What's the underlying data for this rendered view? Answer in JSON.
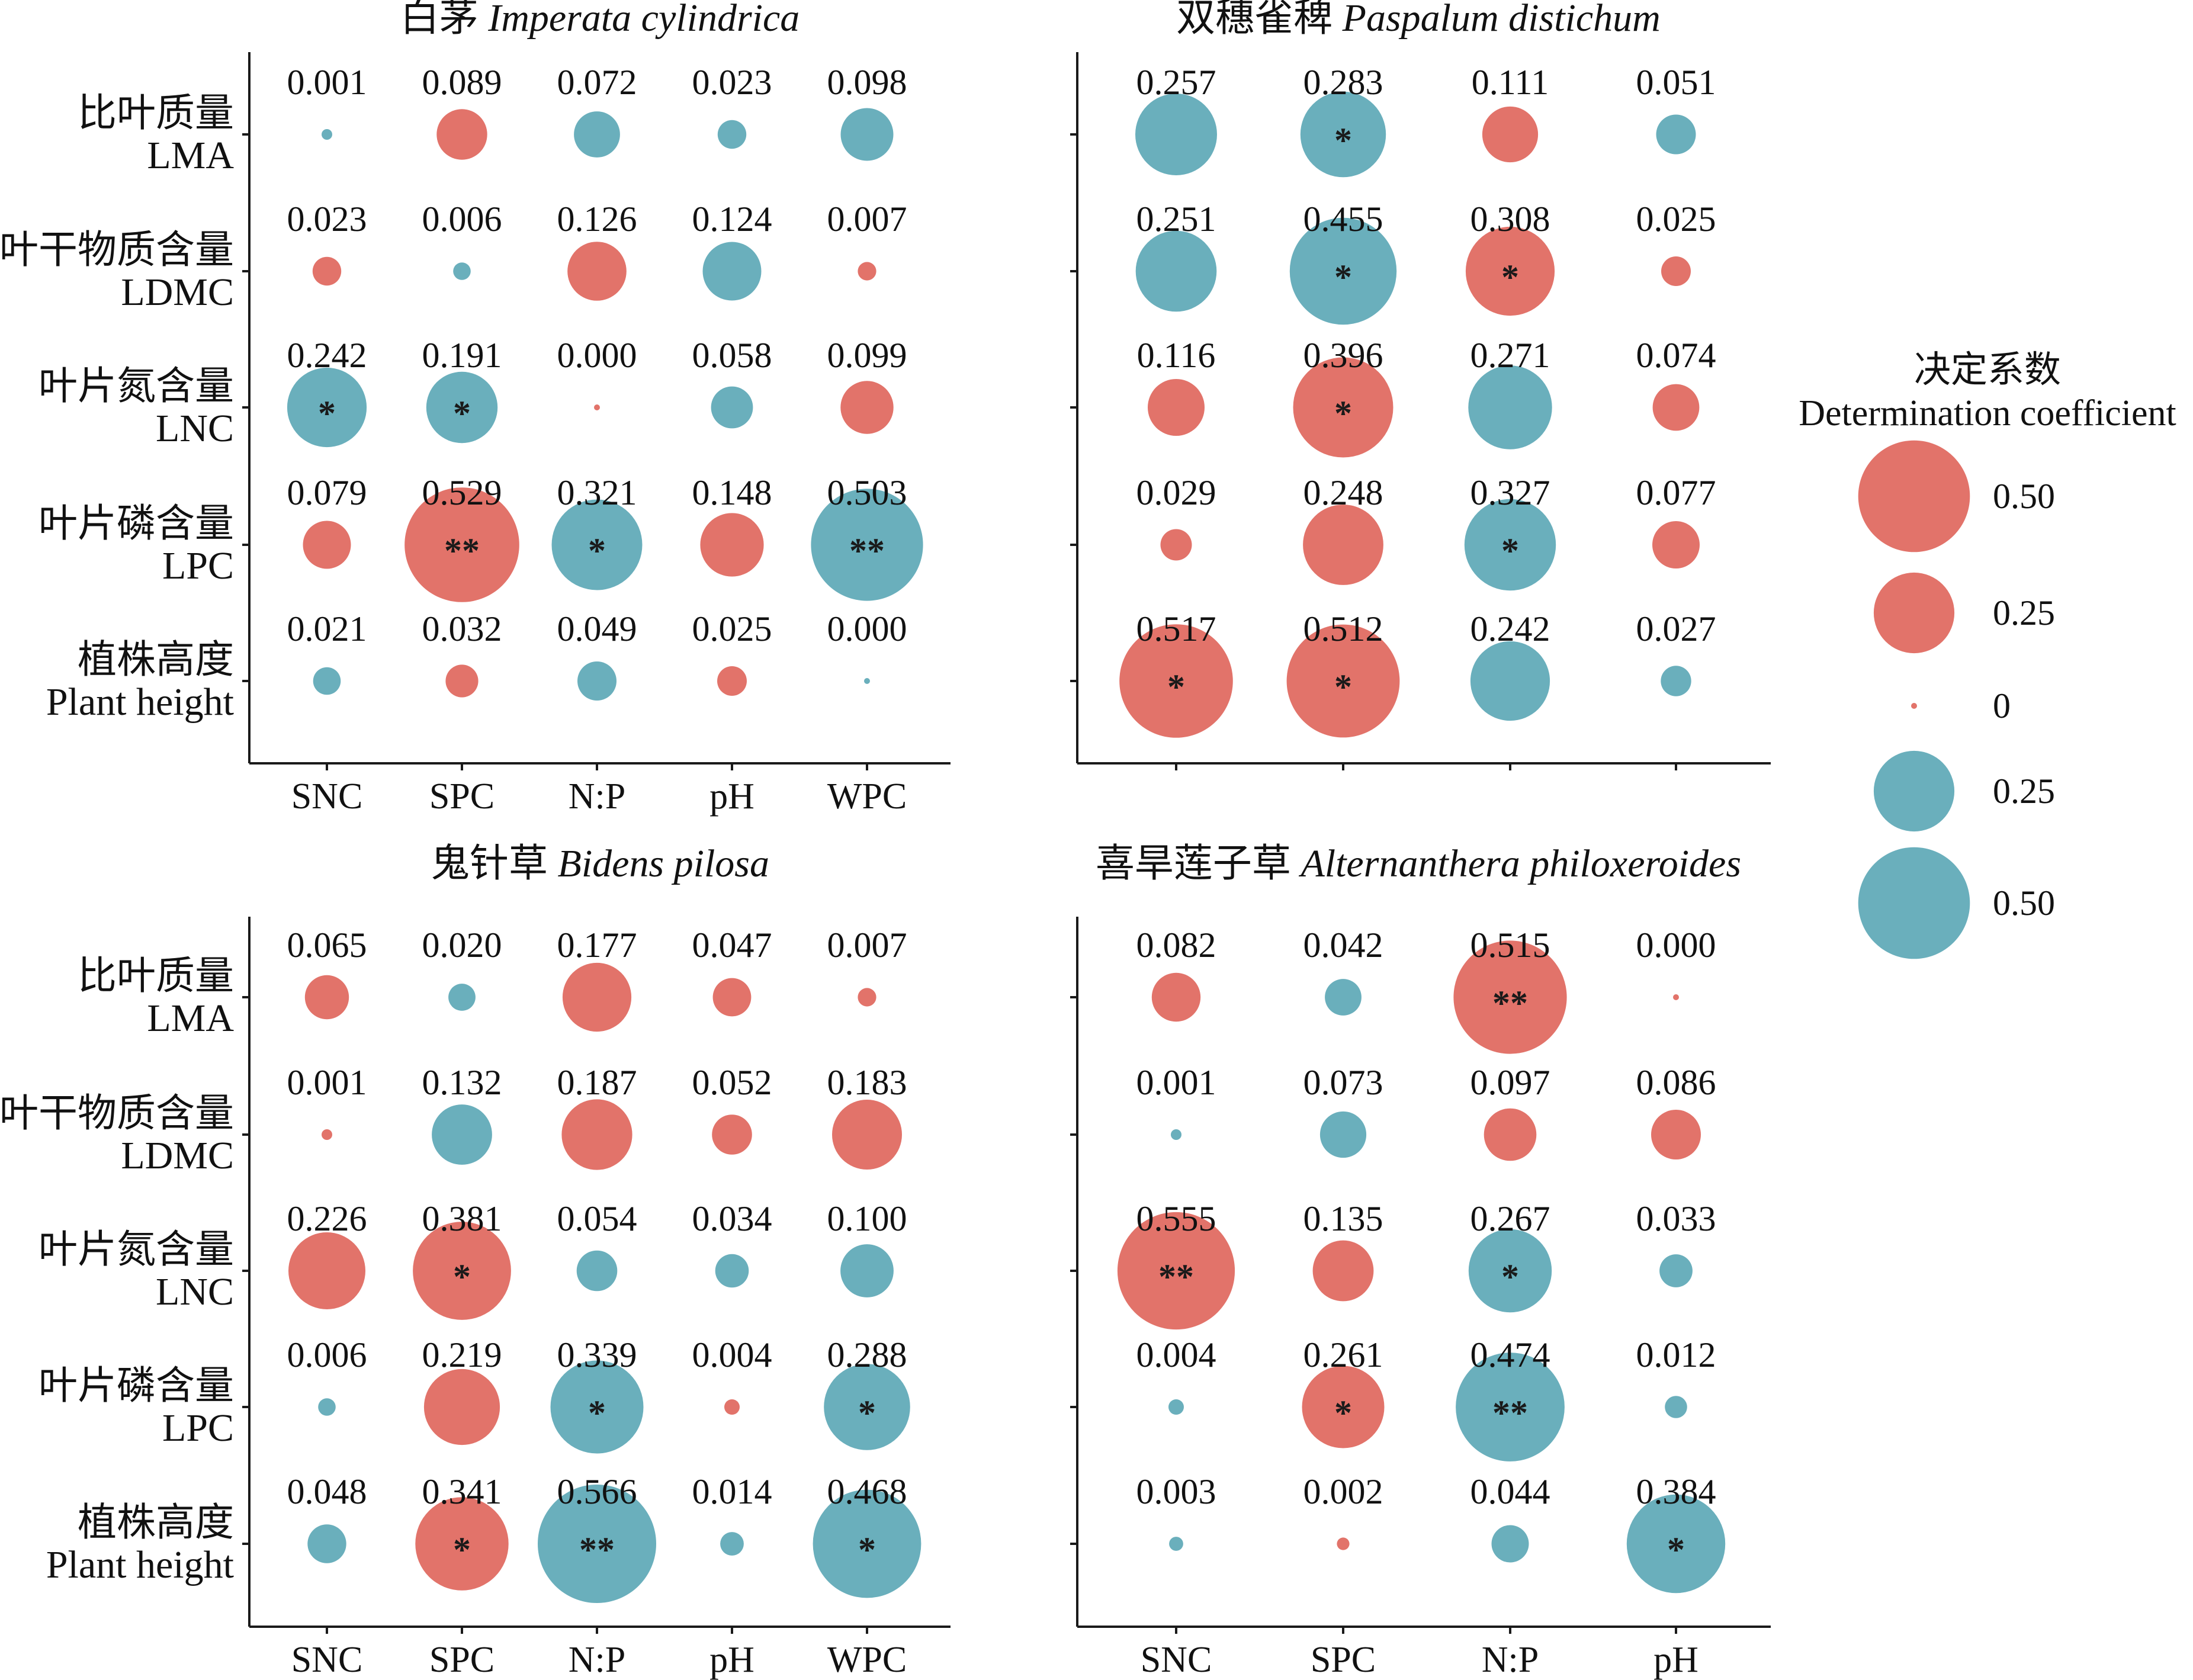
{
  "colors": {
    "positive": "#E2736A",
    "negative": "#6AAFBC"
  },
  "legend": {
    "title_zh": "决定系数",
    "title_en": "Determination coefficient",
    "items": [
      {
        "label": "0.50",
        "r2": 0.5,
        "color": "positive"
      },
      {
        "label": "0.25",
        "r2": 0.25,
        "color": "positive"
      },
      {
        "label": "0",
        "r2": 0.0,
        "color": "positive"
      },
      {
        "label": "0.25",
        "r2": 0.25,
        "color": "negative"
      },
      {
        "label": "0.50",
        "r2": 0.5,
        "color": "negative"
      }
    ]
  },
  "chart_data": [
    {
      "type": "bubble",
      "title_zh": "白茅",
      "title_species": "Imperata cylindrica",
      "rows_zh": [
        "比叶质量",
        "叶干物质含量",
        "叶片氮含量",
        "叶片磷含量",
        "植株高度"
      ],
      "rows_en": [
        "LMA",
        "LDMC",
        "LNC",
        "LPC",
        "Plant height"
      ],
      "columns": [
        "SNC",
        "SPC",
        "N:P",
        "pH",
        "WPC"
      ],
      "values": [
        [
          "0.001",
          "0.089",
          "0.072",
          "0.023",
          "0.098"
        ],
        [
          "0.023",
          "0.006",
          "0.126",
          "0.124",
          "0.007"
        ],
        [
          "0.242",
          "0.191",
          "0.000",
          "0.058",
          "0.099"
        ],
        [
          "0.079",
          "0.529",
          "0.321",
          "0.148",
          "0.503"
        ],
        [
          "0.021",
          "0.032",
          "0.049",
          "0.025",
          "0.000"
        ]
      ],
      "signs": [
        [
          "neg",
          "pos",
          "neg",
          "neg",
          "neg"
        ],
        [
          "pos",
          "neg",
          "pos",
          "neg",
          "pos"
        ],
        [
          "neg",
          "neg",
          "pos",
          "neg",
          "pos"
        ],
        [
          "pos",
          "pos",
          "neg",
          "pos",
          "neg"
        ],
        [
          "neg",
          "pos",
          "neg",
          "pos",
          "neg"
        ]
      ],
      "significance": [
        [
          "",
          "",
          "",
          "",
          ""
        ],
        [
          "",
          "",
          "",
          "",
          ""
        ],
        [
          "*",
          "*",
          "",
          "",
          ""
        ],
        [
          "",
          "**",
          "*",
          "",
          "**"
        ],
        [
          "",
          "",
          "",
          "",
          ""
        ]
      ]
    },
    {
      "type": "bubble",
      "title_zh": "双穗雀稗",
      "title_species": "Paspalum distichum",
      "rows_zh": [],
      "rows_en": [],
      "columns": [],
      "values": [
        [
          "0.257",
          "0.283",
          "0.111",
          "0.051"
        ],
        [
          "0.251",
          "0.455",
          "0.308",
          "0.025"
        ],
        [
          "0.116",
          "0.396",
          "0.271",
          "0.074"
        ],
        [
          "0.029",
          "0.248",
          "0.327",
          "0.077"
        ],
        [
          "0.517",
          "0.512",
          "0.242",
          "0.027"
        ]
      ],
      "signs": [
        [
          "neg",
          "neg",
          "pos",
          "neg"
        ],
        [
          "neg",
          "neg",
          "pos",
          "pos"
        ],
        [
          "pos",
          "pos",
          "neg",
          "pos"
        ],
        [
          "pos",
          "pos",
          "neg",
          "pos"
        ],
        [
          "pos",
          "pos",
          "neg",
          "neg"
        ]
      ],
      "significance": [
        [
          "",
          "*",
          "",
          ""
        ],
        [
          "",
          "*",
          "*",
          ""
        ],
        [
          "",
          "*",
          "",
          ""
        ],
        [
          "",
          "",
          "*",
          ""
        ],
        [
          "*",
          "*",
          "",
          ""
        ]
      ]
    },
    {
      "type": "bubble",
      "title_zh": "鬼针草",
      "title_species": "Bidens pilosa",
      "rows_zh": [
        "比叶质量",
        "叶干物质含量",
        "叶片氮含量",
        "叶片磷含量",
        "植株高度"
      ],
      "rows_en": [
        "LMA",
        "LDMC",
        "LNC",
        "LPC",
        "Plant height"
      ],
      "columns": [
        "SNC",
        "SPC",
        "N:P",
        "pH",
        "WPC"
      ],
      "values": [
        [
          "0.065",
          "0.020",
          "0.177",
          "0.047",
          "0.007"
        ],
        [
          "0.001",
          "0.132",
          "0.187",
          "0.052",
          "0.183"
        ],
        [
          "0.226",
          "0.381",
          "0.054",
          "0.034",
          "0.100"
        ],
        [
          "0.006",
          "0.219",
          "0.339",
          "0.004",
          "0.288"
        ],
        [
          "0.048",
          "0.341",
          "0.566",
          "0.014",
          "0.468"
        ]
      ],
      "signs": [
        [
          "pos",
          "neg",
          "pos",
          "pos",
          "pos"
        ],
        [
          "pos",
          "neg",
          "pos",
          "pos",
          "pos"
        ],
        [
          "pos",
          "pos",
          "neg",
          "neg",
          "neg"
        ],
        [
          "neg",
          "pos",
          "neg",
          "pos",
          "neg"
        ],
        [
          "neg",
          "pos",
          "neg",
          "neg",
          "neg"
        ]
      ],
      "significance": [
        [
          "",
          "",
          "",
          "",
          ""
        ],
        [
          "",
          "",
          "",
          "",
          ""
        ],
        [
          "",
          "*",
          "",
          "",
          ""
        ],
        [
          "",
          "",
          "*",
          "",
          "*"
        ],
        [
          "",
          "*",
          "**",
          "",
          "*"
        ]
      ]
    },
    {
      "type": "bubble",
      "title_zh": "喜旱莲子草",
      "title_species": "Alternanthera philoxeroides",
      "rows_zh": [],
      "rows_en": [],
      "columns": [
        "SNC",
        "SPC",
        "N:P",
        "pH"
      ],
      "values": [
        [
          "0.082",
          "0.042",
          "0.515",
          "0.000"
        ],
        [
          "0.001",
          "0.073",
          "0.097",
          "0.086"
        ],
        [
          "0.555",
          "0.135",
          "0.267",
          "0.033"
        ],
        [
          "0.004",
          "0.261",
          "0.474",
          "0.012"
        ],
        [
          "0.003",
          "0.002",
          "0.044",
          "0.384"
        ]
      ],
      "signs": [
        [
          "pos",
          "neg",
          "pos",
          "pos"
        ],
        [
          "neg",
          "neg",
          "pos",
          "pos"
        ],
        [
          "pos",
          "pos",
          "neg",
          "neg"
        ],
        [
          "neg",
          "pos",
          "neg",
          "neg"
        ],
        [
          "neg",
          "pos",
          "neg",
          "neg"
        ]
      ],
      "significance": [
        [
          "",
          "",
          "**",
          ""
        ],
        [
          "",
          "",
          "",
          ""
        ],
        [
          "**",
          "",
          "*",
          ""
        ],
        [
          "",
          "*",
          "**",
          ""
        ],
        [
          "",
          "",
          "",
          "*"
        ]
      ]
    }
  ]
}
